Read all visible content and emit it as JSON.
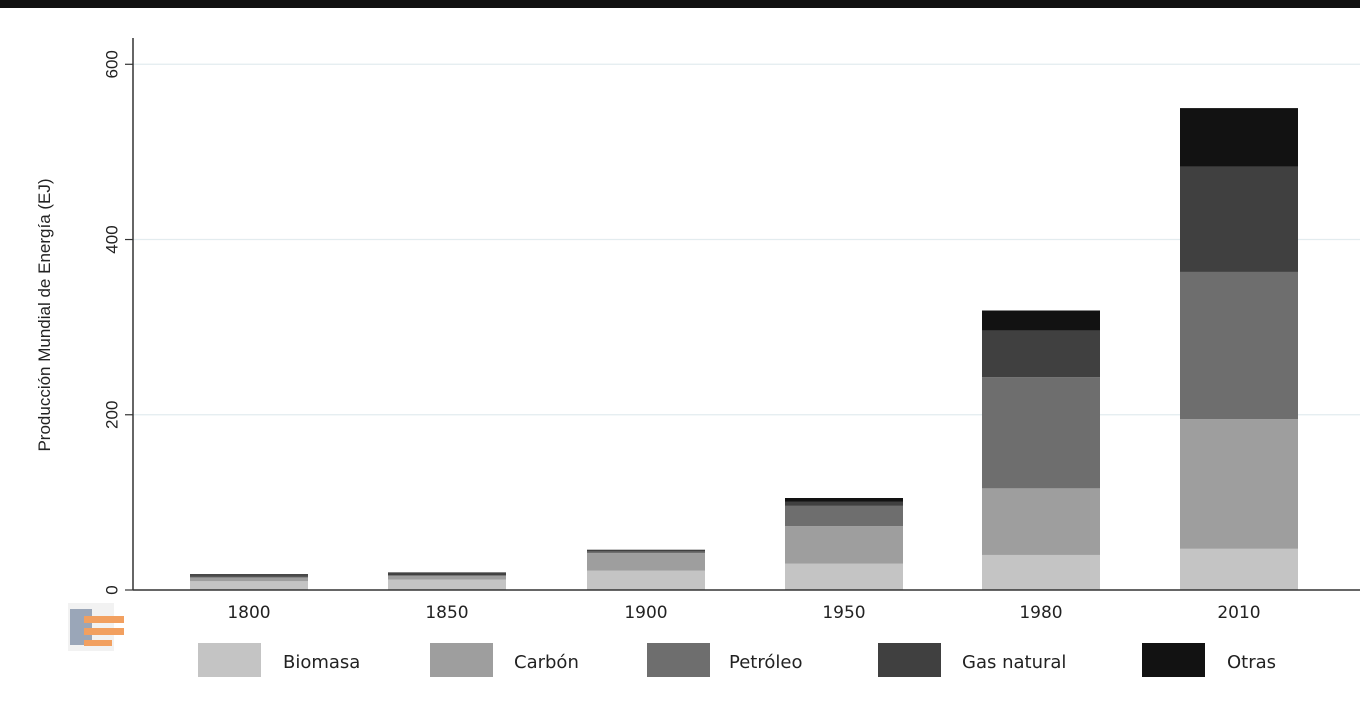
{
  "chart_data": {
    "type": "bar",
    "stacked": true,
    "categories": [
      "1800",
      "1850",
      "1900",
      "1950",
      "1980",
      "2010"
    ],
    "series": [
      {
        "name": "Biomasa",
        "values": [
          10,
          12,
          22,
          30,
          40,
          47
        ],
        "color": "#c4c4c4"
      },
      {
        "name": "Carbón",
        "values": [
          4,
          4,
          20,
          43,
          76,
          148
        ],
        "color": "#9e9e9e"
      },
      {
        "name": "Petróleo",
        "values": [
          1,
          1,
          2,
          23,
          127,
          168
        ],
        "color": "#6e6e6e"
      },
      {
        "name": "Gas natural",
        "values": [
          2,
          2,
          2,
          5,
          53,
          120
        ],
        "color": "#404040"
      },
      {
        "name": "Otras",
        "values": [
          1,
          1,
          0,
          4,
          23,
          67
        ],
        "color": "#121212"
      }
    ],
    "ylabel": "Producción Mundial de Energía (EJ)",
    "xlabel": "",
    "ylim": [
      0,
      630
    ],
    "yticks": [
      0,
      200,
      400,
      600
    ],
    "grid": true,
    "legend_position": "bottom"
  }
}
